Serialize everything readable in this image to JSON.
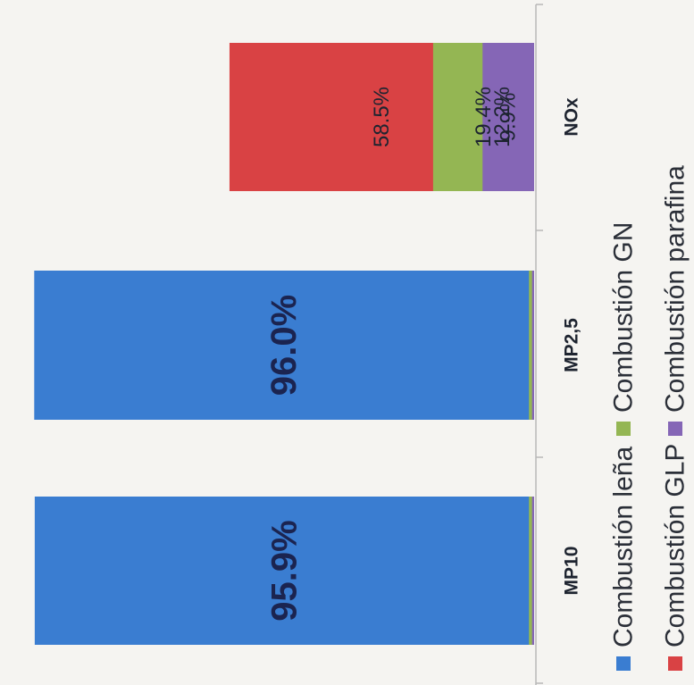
{
  "chart_data": {
    "type": "bar",
    "orientation": "horizontal-stacked-100",
    "categories": [
      "MP10",
      "MP2,5",
      "NOx"
    ],
    "series": [
      {
        "name": "Combustión leña",
        "color": "#3a7dd1",
        "values": [
          95.9,
          96.0,
          12.2
        ],
        "labels": [
          "95.9%",
          "96.0%",
          "12.2%"
        ]
      },
      {
        "name": "Combustión GLP",
        "color": "#d94244",
        "values": [
          0.7,
          0.7,
          58.5
        ],
        "labels": [
          "",
          "",
          "58.5%"
        ]
      },
      {
        "name": "Combustión GN",
        "color": "#94b653",
        "values": [
          1.0,
          1.0,
          19.4
        ],
        "labels": [
          "",
          "",
          "19.4%"
        ]
      },
      {
        "name": "Combustión parafina",
        "color": "#8566b6",
        "values": [
          0.4,
          0.4,
          9.9
        ],
        "labels": [
          "",
          "",
          "9.9%"
        ]
      }
    ],
    "xlim": [
      0,
      100
    ],
    "stack_order": [
      "Combustión leña",
      "Combustión GLP",
      "Combustión GN",
      "Combustión parafina"
    ],
    "legend_position": "bottom",
    "grid": false,
    "rotation": "image rotated 90 degrees counter-clockwise"
  }
}
